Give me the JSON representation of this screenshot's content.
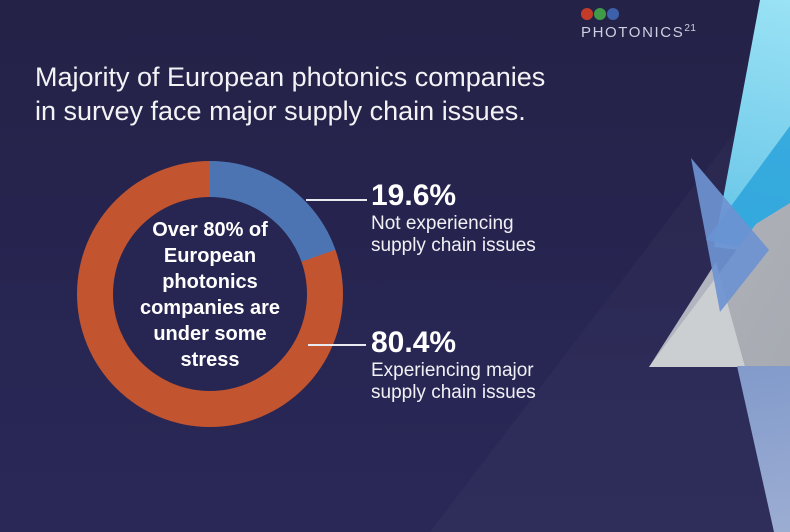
{
  "page": {
    "kind": "infographic-slide",
    "background_color": "#272551"
  },
  "logo": {
    "brand": "PHOTONICS",
    "superscript": "21",
    "text_color": "#cdd0e2",
    "dot_colors": [
      "#c43b2a",
      "#3f9b48",
      "#3d60aa"
    ]
  },
  "title": {
    "line1": "Majority of European photonics companies",
    "line2": "in survey face major supply chain issues."
  },
  "chart_data": {
    "type": "pie",
    "subtype": "donut",
    "title": "Majority of European photonics companies in survey face major supply chain issues.",
    "labels": [
      "Not experiencing supply chain issues",
      "Experiencing major supply chain issues"
    ],
    "values": [
      19.6,
      80.4
    ],
    "colors": [
      "#4c74b2",
      "#c2552f"
    ],
    "start_angle_deg": 0,
    "direction": "clockwise",
    "legend_position": "callouts-right",
    "center_lines": [
      "Over 80% of",
      "European",
      "photonics",
      "companies are",
      "under some",
      "stress"
    ]
  },
  "callouts": [
    {
      "value": "19.6%",
      "desc_line1": "Not experiencing",
      "desc_line2": "supply chain issues"
    },
    {
      "value": "80.4%",
      "desc_line1": "Experiencing major",
      "desc_line2": "supply chain issues"
    }
  ],
  "decor": {
    "cyan_band": "#49b4e0",
    "cyan_triangle": "#2aa3da",
    "gray_polygon": "#b4b7bd",
    "blue_triangle": "#6e92d1",
    "blue_bottom": "#6f8dc6"
  }
}
